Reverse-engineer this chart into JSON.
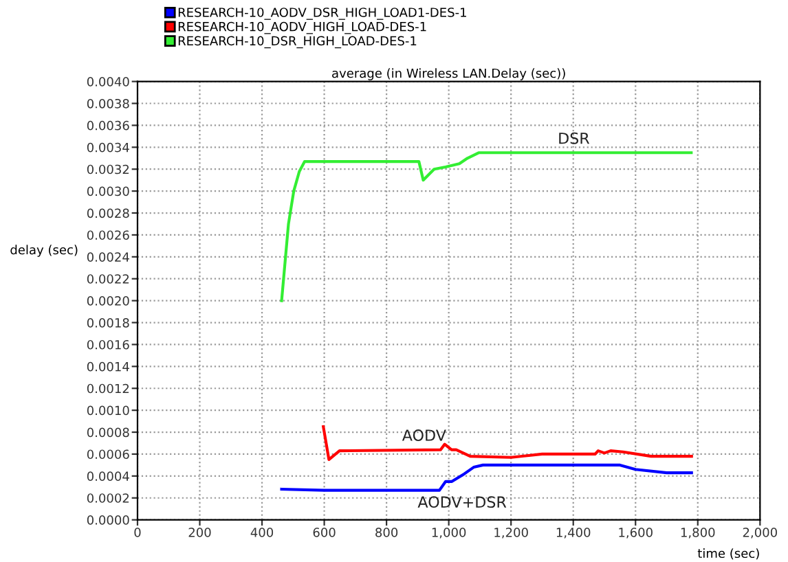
{
  "chart_data": {
    "type": "line",
    "title": "average (in Wireless LAN.Delay (sec))",
    "xlabel": "time (sec)",
    "ylabel": "delay (sec)",
    "series": [
      {
        "name": "RESEARCH-10_AODV_DSR_HIGH_LOAD1-DES-1",
        "color": "#0000ff",
        "x": [
          463,
          600,
          970,
          990,
          1010,
          1050,
          1080,
          1110,
          1550,
          1600,
          1700,
          1780
        ],
        "values": [
          0.00028,
          0.00027,
          0.00027,
          0.00035,
          0.00035,
          0.00042,
          0.00048,
          0.0005,
          0.0005,
          0.00046,
          0.00043,
          0.00043
        ]
      },
      {
        "name": "RESEARCH-10_AODV_HIGH_LOAD-DES-1",
        "color": "#ff0000",
        "x": [
          597,
          615,
          649,
          974,
          987,
          1009,
          1024,
          1069,
          1200,
          1300,
          1470,
          1480,
          1500,
          1520,
          1560,
          1650,
          1780
        ],
        "values": [
          0.00085,
          0.00055,
          0.00063,
          0.00064,
          0.00069,
          0.00064,
          0.00064,
          0.00058,
          0.00057,
          0.0006,
          0.0006,
          0.00063,
          0.00061,
          0.00063,
          0.00062,
          0.00058,
          0.00058
        ]
      },
      {
        "name": "RESEARCH-10_DSR_HIGH_LOAD-DES-1",
        "color": "#33ee33",
        "x": [
          463,
          485,
          502,
          520,
          537,
          600,
          904,
          918,
          953,
          990,
          1034,
          1060,
          1096,
          1779
        ],
        "values": [
          0.002,
          0.0027,
          0.003,
          0.00318,
          0.00327,
          0.00327,
          0.00327,
          0.0031,
          0.0032,
          0.00322,
          0.00325,
          0.0033,
          0.00335,
          0.00335
        ]
      }
    ],
    "annotations": [
      {
        "text": "DSR",
        "x": 1350,
        "y": 0.00335
      },
      {
        "text": "AODV",
        "x": 850,
        "y": 0.00064
      },
      {
        "text": "AODV+DSR",
        "x": 900,
        "y": 0.00027
      }
    ],
    "xlim": [
      0,
      2000
    ],
    "xticks": [
      0,
      200,
      400,
      600,
      800,
      {
        "value": 1000,
        "label": "1,000"
      },
      {
        "value": 1200,
        "label": "1,200"
      },
      {
        "value": 1400,
        "label": "1,400"
      },
      {
        "value": 1600,
        "label": "1,600"
      },
      {
        "value": 1800,
        "label": "1,800"
      },
      {
        "value": 2000,
        "label": "2,000"
      }
    ],
    "ylim": [
      0,
      0.004
    ],
    "yticks": [
      {
        "value": 0,
        "label": "0.0000"
      },
      {
        "value": 0.0002,
        "label": "0.0002"
      },
      {
        "value": 0.0004,
        "label": "0.0004"
      },
      {
        "value": 0.0006,
        "label": "0.0006"
      },
      {
        "value": 0.0008,
        "label": "0.0008"
      },
      {
        "value": 0.001,
        "label": "0.0010"
      },
      {
        "value": 0.0012,
        "label": "0.0012"
      },
      {
        "value": 0.0014,
        "label": "0.0014"
      },
      {
        "value": 0.0016,
        "label": "0.0016"
      },
      {
        "value": 0.0018,
        "label": "0.0018"
      },
      {
        "value": 0.002,
        "label": "0.0020"
      },
      {
        "value": 0.0022,
        "label": "0.0022"
      },
      {
        "value": 0.0024,
        "label": "0.0024"
      },
      {
        "value": 0.0026,
        "label": "0.0026"
      },
      {
        "value": 0.0028,
        "label": "0.0028"
      },
      {
        "value": 0.003,
        "label": "0.0030"
      },
      {
        "value": 0.0032,
        "label": "0.0032"
      },
      {
        "value": 0.0034,
        "label": "0.0034"
      },
      {
        "value": 0.0036,
        "label": "0.0036"
      },
      {
        "value": 0.0038,
        "label": "0.0038"
      },
      {
        "value": 0.004,
        "label": "0.0040"
      }
    ],
    "grid": true,
    "legend": "top left",
    "marker": "none",
    "line_style": "solid"
  }
}
